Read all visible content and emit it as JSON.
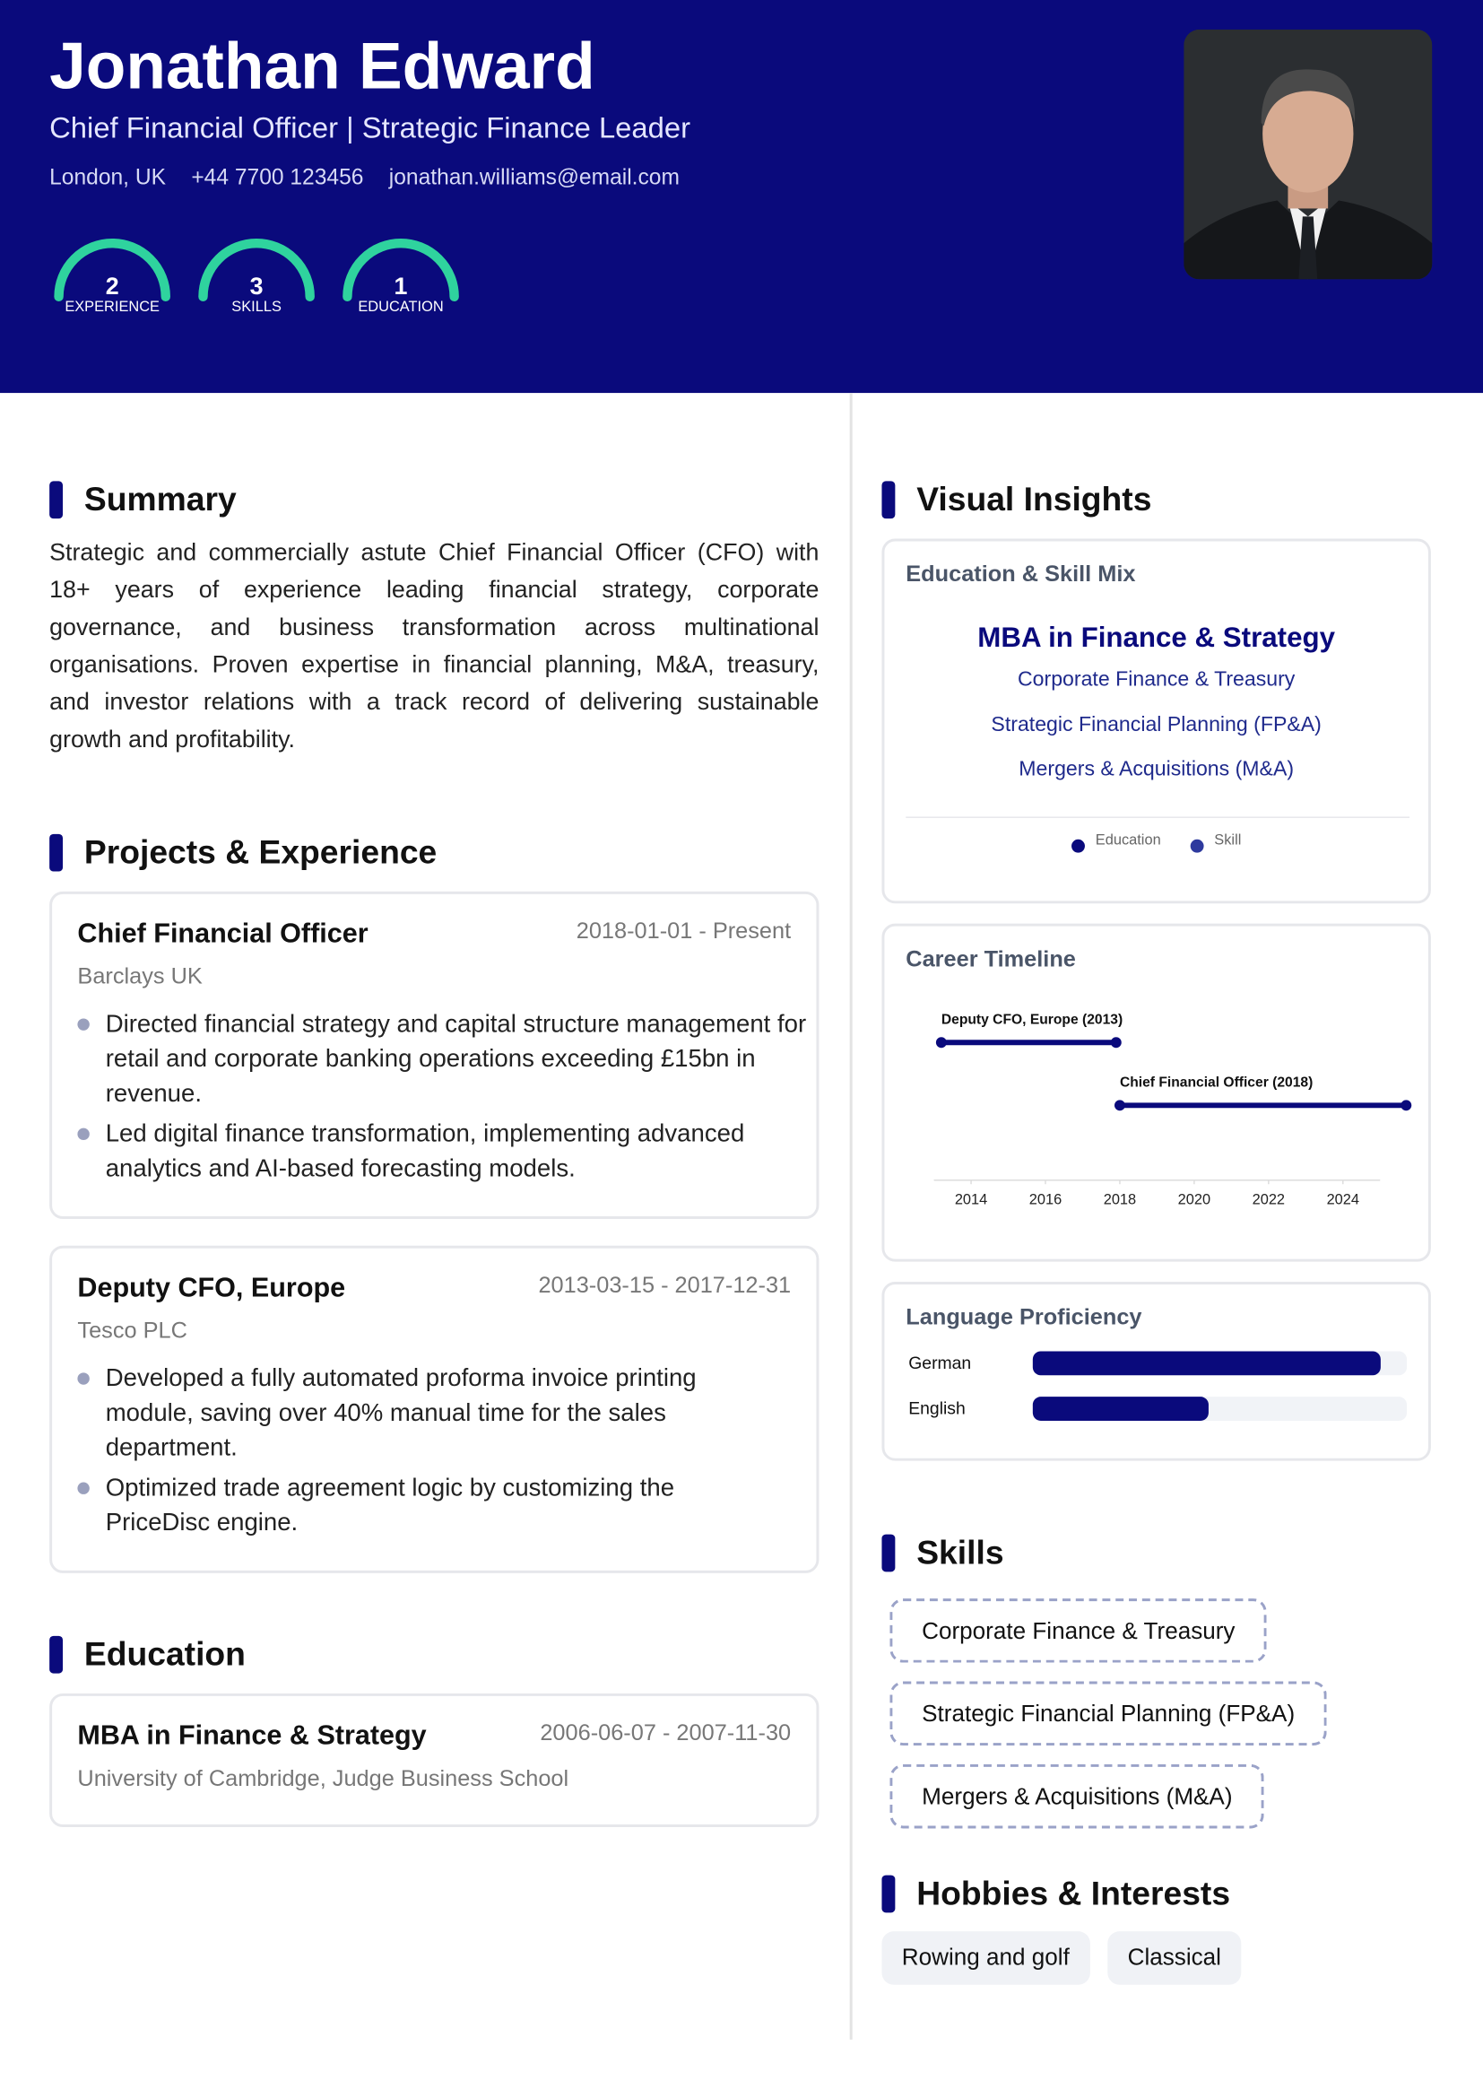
{
  "header": {
    "name": "Jonathan Edward",
    "title": "Chief Financial Officer | Strategic Finance Leader",
    "location": "London, UK",
    "phone": "+44 7700 123456",
    "email": "jonathan.williams@email.com",
    "stats": [
      {
        "value": "2",
        "label": "EXPERIENCE"
      },
      {
        "value": "3",
        "label": "SKILLS"
      },
      {
        "value": "1",
        "label": "EDUCATION"
      }
    ]
  },
  "summary": {
    "heading": "Summary",
    "text": "Strategic and commercially astute Chief Financial Officer (CFO) with 18+ years of experience leading financial strategy, corporate governance, and business transformation across multinational organisations. Proven expertise in financial planning, M&A, treasury, and investor relations with a track record of delivering sustainable growth and profitability."
  },
  "experience": {
    "heading": "Projects & Experience",
    "items": [
      {
        "title": "Chief Financial Officer",
        "dates": "2018-01-01 - Present",
        "company": "Barclays UK",
        "bullets": [
          "Directed financial strategy and capital structure management for retail and corporate banking operations exceeding £15bn in revenue.",
          "Led digital finance transformation, implementing advanced analytics and AI-based forecasting models."
        ]
      },
      {
        "title": "Deputy CFO, Europe",
        "dates": "2013-03-15 - 2017-12-31",
        "company": "Tesco PLC",
        "bullets": [
          "Developed a fully automated proforma invoice printing module, saving over 40% manual time for the sales department.",
          "Optimized trade agreement logic by customizing the PriceDisc engine."
        ]
      }
    ]
  },
  "education": {
    "heading": "Education",
    "items": [
      {
        "degree": "MBA in Finance & Strategy",
        "dates": "2006-06-07 - 2007-11-30",
        "school": "University of Cambridge, Judge Business School"
      }
    ]
  },
  "insights": {
    "heading": "Visual Insights",
    "mix": {
      "title": "Education & Skill Mix",
      "main": "MBA in Finance & Strategy",
      "items": [
        "Corporate Finance & Treasury",
        "Strategic Financial Planning (FP&A)",
        "Mergers & Acquisitions (M&A)"
      ],
      "legend": [
        {
          "name": "Education",
          "color": "#0a0a7c"
        },
        {
          "name": "Skill",
          "color": "#2e3a9e"
        }
      ]
    },
    "timeline": {
      "title": "Career Timeline",
      "xlim": [
        2013,
        2025
      ],
      "xticks": [
        2014,
        2016,
        2018,
        2020,
        2022,
        2024
      ],
      "color": "#0a0a7c",
      "bars": [
        {
          "label": "Deputy CFO, Europe (2013)",
          "start": 2013.2,
          "end": 2017.9
        },
        {
          "label": "Chief Financial Officer (2018)",
          "start": 2018,
          "end": 2025.7
        }
      ]
    },
    "languages": {
      "title": "Language Proficiency",
      "xlim": [
        0,
        100
      ],
      "color": "#0a0a7c",
      "rows": [
        {
          "name": "German",
          "value": 93
        },
        {
          "name": "English",
          "value": 47
        }
      ]
    }
  },
  "skills": {
    "heading": "Skills",
    "items": [
      "Corporate Finance & Treasury",
      "Strategic Financial Planning (FP&A)",
      "Mergers & Acquisitions (M&A)"
    ]
  },
  "hobbies": {
    "heading": "Hobbies & Interests",
    "items": [
      "Rowing and golf",
      "Classical"
    ]
  }
}
